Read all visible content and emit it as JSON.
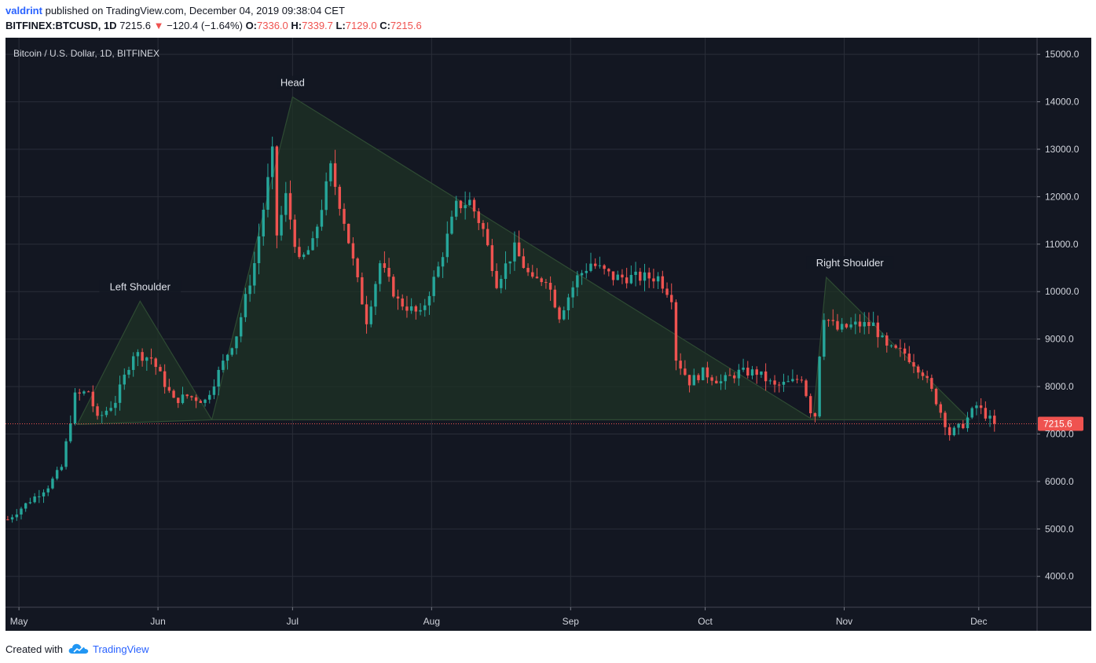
{
  "header": {
    "author": "valdrint",
    "published_text": "published on TradingView.com, December 04, 2019 09:38:04 CET",
    "symbol": "BITFINEX:BTCUSD, 1D",
    "last": "7215.6",
    "down_arrow": "▼",
    "change": "−120.4 (−1.64%)",
    "o_label": "O:",
    "o_value": "7336.0",
    "h_label": "H:",
    "h_value": "7339.7",
    "l_label": "L:",
    "l_value": "7129.0",
    "c_label": "C:",
    "c_value": "7215.6"
  },
  "footer": {
    "created_with": "Created with",
    "brand": "TradingView",
    "logo_icon": "tradingview-cloud-icon"
  },
  "colors": {
    "background": "#131722",
    "grid": "#2a2e39",
    "up": "#26a69a",
    "down": "#ef5350",
    "pattern_fill": "#1f3325",
    "pattern_stroke": "#2e4a33",
    "axis_text": "#d1d4dc"
  },
  "chart_data": {
    "type": "candlestick",
    "title": "Bitcoin / U.S. Dollar, 1D, BITFINEX",
    "x_axis": {
      "ticks": [
        "May",
        "Jun",
        "Jul",
        "Aug",
        "Sep",
        "Oct",
        "Nov",
        "Dec"
      ],
      "start_date": "2019-04-28",
      "end_date": "2019-12-14"
    },
    "y_axis": {
      "range": [
        3350,
        15350
      ],
      "ticks": [
        4000,
        5000,
        6000,
        7000,
        8000,
        9000,
        10000,
        11000,
        12000,
        13000,
        14000,
        15000
      ],
      "tick_labels": [
        "4000.0",
        "5000.0",
        "6000.0",
        "7000.0",
        "8000.0",
        "9000.0",
        "10000.0",
        "11000.0",
        "12000.0",
        "13000.0",
        "14000.0",
        "15000.0"
      ]
    },
    "grid": true,
    "last_price": 7215.6,
    "last_price_label": "7215.6",
    "pattern_labels": [
      "Left Shoulder",
      "Head",
      "Right Shoulder"
    ],
    "pattern_triangles": [
      {
        "label": "Left Shoulder",
        "points": [
          [
            "2019-05-14",
            7200
          ],
          [
            "2019-05-28",
            9800
          ],
          [
            "2019-06-13",
            7300
          ]
        ]
      },
      {
        "label": "Head",
        "points": [
          [
            "2019-06-13",
            7300
          ],
          [
            "2019-07-01",
            14100
          ],
          [
            "2019-10-25",
            7300
          ]
        ]
      },
      {
        "label": "Right Shoulder",
        "points": [
          [
            "2019-10-25",
            7300
          ],
          [
            "2019-10-28",
            10300
          ],
          [
            "2019-11-29",
            7300
          ]
        ]
      }
    ],
    "ohlc_anchors": [
      [
        "2019-04-28",
        5200
      ],
      [
        "2019-05-03",
        5600
      ],
      [
        "2019-05-07",
        5900
      ],
      [
        "2019-05-10",
        6300
      ],
      [
        "2019-05-13",
        7800
      ],
      [
        "2019-05-16",
        7900
      ],
      [
        "2019-05-18",
        7300
      ],
      [
        "2019-05-22",
        7700
      ],
      [
        "2019-05-26",
        8700
      ],
      [
        "2019-05-30",
        8600
      ],
      [
        "2019-06-04",
        7700
      ],
      [
        "2019-06-07",
        7800
      ],
      [
        "2019-06-11",
        7700
      ],
      [
        "2019-06-14",
        8300
      ],
      [
        "2019-06-18",
        9100
      ],
      [
        "2019-06-22",
        10600
      ],
      [
        "2019-06-26",
        12900
      ],
      [
        "2019-06-27",
        11200
      ],
      [
        "2019-06-29",
        12000
      ],
      [
        "2019-07-02",
        10600
      ],
      [
        "2019-07-05",
        11000
      ],
      [
        "2019-07-09",
        12600
      ],
      [
        "2019-07-12",
        11500
      ],
      [
        "2019-07-15",
        10200
      ],
      [
        "2019-07-17",
        9400
      ],
      [
        "2019-07-20",
        10600
      ],
      [
        "2019-07-24",
        9800
      ],
      [
        "2019-07-29",
        9500
      ],
      [
        "2019-08-02",
        10500
      ],
      [
        "2019-08-06",
        11800
      ],
      [
        "2019-08-09",
        11900
      ],
      [
        "2019-08-12",
        11300
      ],
      [
        "2019-08-15",
        10200
      ],
      [
        "2019-08-19",
        10900
      ],
      [
        "2019-08-23",
        10200
      ],
      [
        "2019-08-26",
        10300
      ],
      [
        "2019-08-29",
        9500
      ],
      [
        "2019-09-02",
        10300
      ],
      [
        "2019-09-05",
        10600
      ],
      [
        "2019-09-10",
        10300
      ],
      [
        "2019-09-15",
        10300
      ],
      [
        "2019-09-20",
        10300
      ],
      [
        "2019-09-23",
        9900
      ],
      [
        "2019-09-24",
        8600
      ],
      [
        "2019-09-27",
        8100
      ],
      [
        "2019-09-30",
        8300
      ],
      [
        "2019-10-04",
        8100
      ],
      [
        "2019-10-08",
        8300
      ],
      [
        "2019-10-12",
        8300
      ],
      [
        "2019-10-16",
        8000
      ],
      [
        "2019-10-20",
        8100
      ],
      [
        "2019-10-22",
        8200
      ],
      [
        "2019-10-24",
        7500
      ],
      [
        "2019-10-25",
        7400
      ],
      [
        "2019-10-26",
        8700
      ],
      [
        "2019-10-27",
        9500
      ],
      [
        "2019-10-30",
        9200
      ],
      [
        "2019-11-03",
        9300
      ],
      [
        "2019-11-07",
        9300
      ],
      [
        "2019-11-10",
        8800
      ],
      [
        "2019-11-14",
        8700
      ],
      [
        "2019-11-18",
        8300
      ],
      [
        "2019-11-21",
        7700
      ],
      [
        "2019-11-24",
        7000
      ],
      [
        "2019-11-27",
        7200
      ],
      [
        "2019-11-30",
        7600
      ],
      [
        "2019-12-02",
        7400
      ],
      [
        "2019-12-04",
        7215
      ]
    ]
  }
}
